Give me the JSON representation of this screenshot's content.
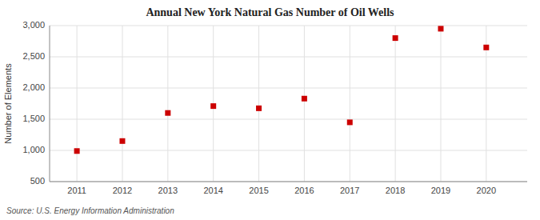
{
  "chart_data": {
    "type": "scatter",
    "title": "Annual New York Natural Gas Number of Oil Wells",
    "ylabel": "Number of Elements",
    "annotations": [
      "Source: U.S. Energy Information Administration"
    ],
    "x": [
      2011,
      2012,
      2013,
      2014,
      2015,
      2016,
      2017,
      2018,
      2019,
      2020
    ],
    "values": [
      990,
      1150,
      1600,
      1710,
      1675,
      1830,
      1450,
      2800,
      2950,
      2650
    ],
    "color": "#cc0000",
    "marker": "square",
    "xlim": [
      2010.4,
      2020.9
    ],
    "xticks": [
      2011,
      2012,
      2013,
      2014,
      2015,
      2016,
      2017,
      2018,
      2019,
      2020
    ],
    "ylim": [
      500,
      3000
    ],
    "yticks": [
      500,
      {
        "value": 1000,
        "label": "1,000"
      },
      {
        "value": 1500,
        "label": "1,500"
      },
      {
        "value": 2000,
        "label": "2,000"
      },
      {
        "value": 2500,
        "label": "2,500"
      },
      {
        "value": 3000,
        "label": "3,000"
      }
    ],
    "grid": true
  }
}
